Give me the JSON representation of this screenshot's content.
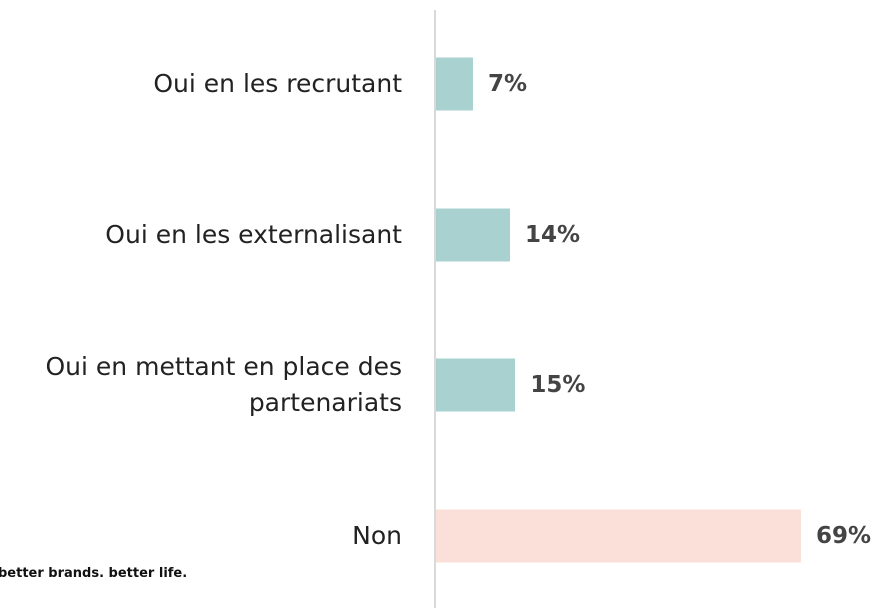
{
  "chart_data": {
    "type": "bar",
    "orientation": "horizontal",
    "categories": [
      "Oui en les recrutant",
      "Oui en les externalisant",
      "Oui en mettant en place des partenariats",
      "Non"
    ],
    "values": [
      7,
      14,
      15,
      69
    ],
    "value_labels": [
      "7%",
      "14%",
      "15%",
      "69%"
    ],
    "colors": [
      "#a8d1cf",
      "#a8d1cf",
      "#a8d1cf",
      "#fbe0da"
    ]
  },
  "footer": "better brands. better life."
}
